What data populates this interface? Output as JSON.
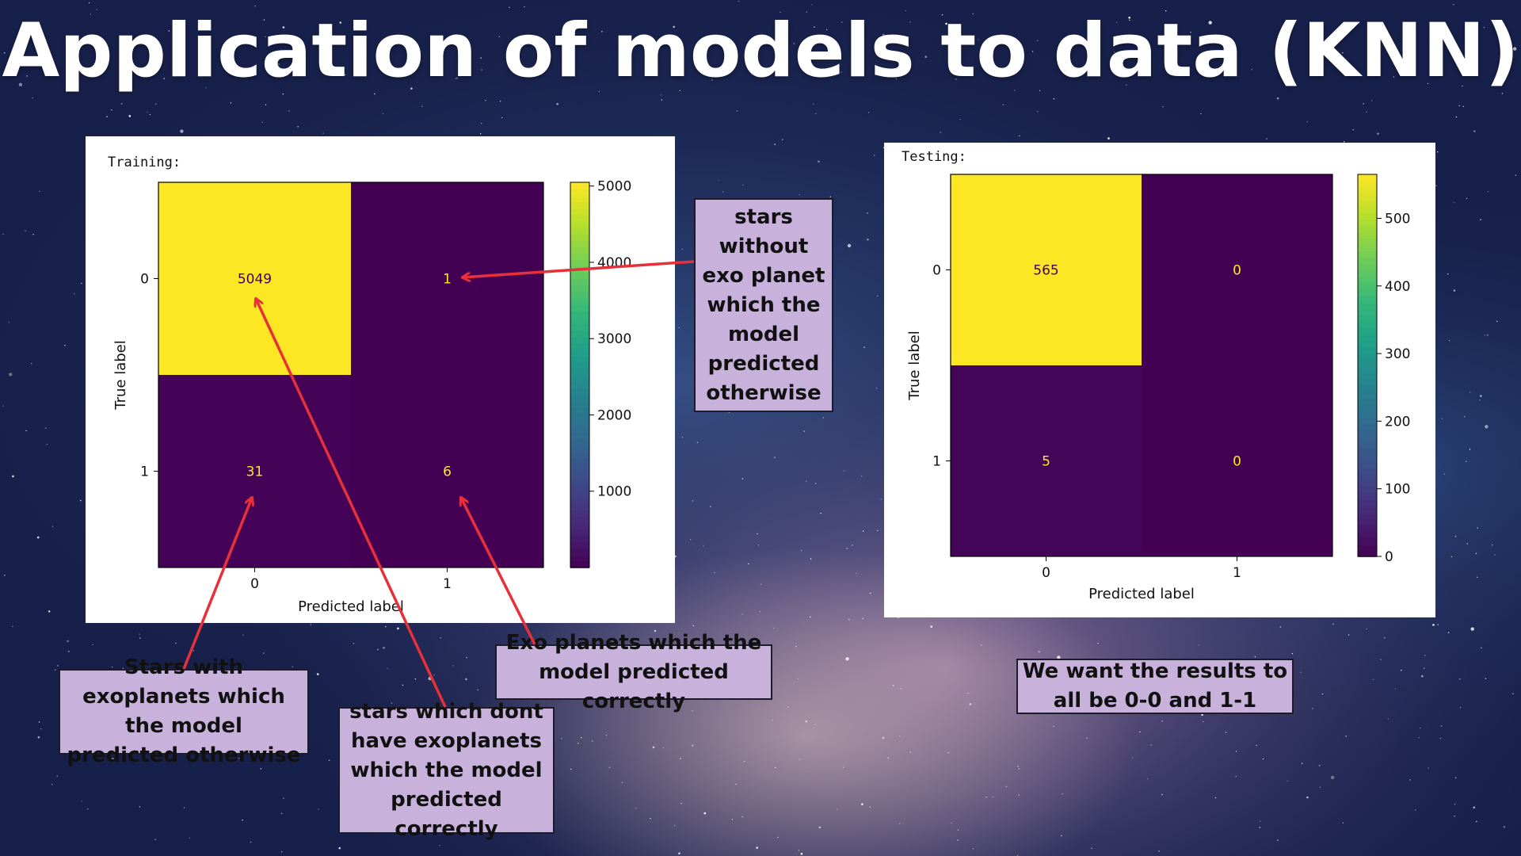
{
  "title": "Application of models to data (KNN)",
  "colors": {
    "viridis_low": "#440154",
    "viridis_high": "#fde725",
    "annot_low": "#fde725",
    "annot_high": "#440154",
    "arrow": "#e8303a",
    "callout_bg": "#c8b2dc"
  },
  "chart_data": [
    {
      "type": "heatmap",
      "panel_label": "Training:",
      "xlabel": "Predicted label",
      "ylabel": "True label",
      "x_ticks": [
        "0",
        "1"
      ],
      "y_ticks": [
        "0",
        "1"
      ],
      "matrix": [
        [
          5049,
          1
        ],
        [
          31,
          6
        ]
      ],
      "colorbar": {
        "min": 0,
        "max": 5049,
        "ticks": [
          1000,
          2000,
          3000,
          4000,
          5000
        ]
      }
    },
    {
      "type": "heatmap",
      "panel_label": "Testing:",
      "xlabel": "Predicted label",
      "ylabel": "True label",
      "x_ticks": [
        "0",
        "1"
      ],
      "y_ticks": [
        "0",
        "1"
      ],
      "matrix": [
        [
          565,
          0
        ],
        [
          5,
          0
        ]
      ],
      "colorbar": {
        "min": 0,
        "max": 565,
        "ticks": [
          0,
          100,
          200,
          300,
          400,
          500
        ]
      }
    }
  ],
  "callouts": {
    "fp": "stars without exo planet which the model predicted otherwise",
    "fn": "Stars with exoplanets which the model predicted otherwise",
    "tn": "stars which dont have exoplanets which the model predicted correctly",
    "tp": "Exo planets which the model predicted correctly",
    "goal": "We want the results to all be 0-0 and 1-1"
  }
}
